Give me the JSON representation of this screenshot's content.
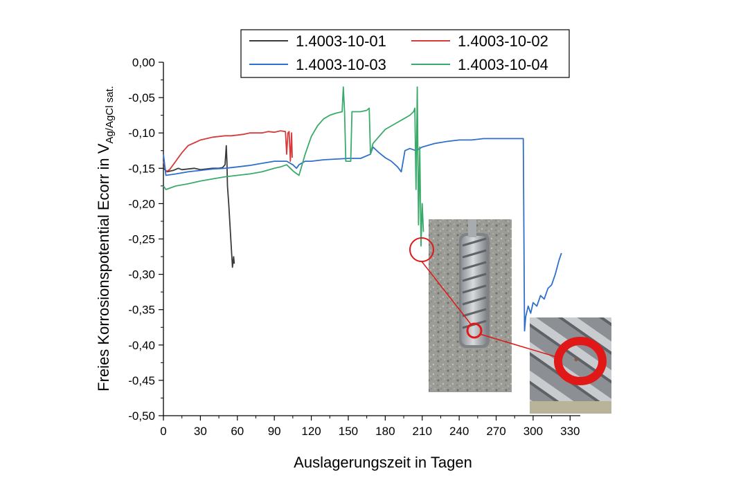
{
  "chart_data": {
    "type": "line",
    "xlabel": "Auslagerungszeit in Tagen",
    "ylabel": {
      "main": "Freies Korrosionspotential Ecorr in V",
      "subscript": "Ag/AgCl sat."
    },
    "xlim": [
      0,
      345
    ],
    "ylim": [
      -0.5,
      0.0
    ],
    "xticks": [
      0,
      30,
      60,
      90,
      120,
      150,
      180,
      210,
      240,
      270,
      300,
      330
    ],
    "xtick_labels": [
      "0",
      "30",
      "60",
      "90",
      "120",
      "150",
      "180",
      "210",
      "240",
      "270",
      "300",
      "330"
    ],
    "yticks": [
      0.0,
      -0.05,
      -0.1,
      -0.15,
      -0.2,
      -0.25,
      -0.3,
      -0.35,
      -0.4,
      -0.45,
      -0.5
    ],
    "ytick_labels": [
      "0,00",
      "-0,05",
      "-0,10",
      "-0,15",
      "-0,20",
      "-0,25",
      "-0,30",
      "-0,35",
      "-0,40",
      "-0,45",
      "-0,50"
    ],
    "grid": false,
    "legend_position": "top",
    "series": [
      {
        "name": "1.4003-10-01",
        "color": "#3a3a3a",
        "points": [
          [
            0,
            -0.15
          ],
          [
            3,
            -0.155
          ],
          [
            8,
            -0.153
          ],
          [
            12,
            -0.15
          ],
          [
            15,
            -0.152
          ],
          [
            20,
            -0.151
          ],
          [
            25,
            -0.15
          ],
          [
            30,
            -0.152
          ],
          [
            35,
            -0.151
          ],
          [
            40,
            -0.15
          ],
          [
            45,
            -0.15
          ],
          [
            48,
            -0.149
          ],
          [
            50,
            -0.145
          ],
          [
            51,
            -0.118
          ],
          [
            51.5,
            -0.14
          ],
          [
            52,
            -0.175
          ],
          [
            53,
            -0.2
          ],
          [
            54,
            -0.23
          ],
          [
            55,
            -0.26
          ],
          [
            56,
            -0.29
          ],
          [
            57,
            -0.275
          ],
          [
            57.5,
            -0.285
          ]
        ]
      },
      {
        "name": "1.4003-10-02",
        "color": "#d63a3a",
        "points": [
          [
            0,
            -0.14
          ],
          [
            2,
            -0.155
          ],
          [
            5,
            -0.152
          ],
          [
            10,
            -0.14
          ],
          [
            15,
            -0.128
          ],
          [
            20,
            -0.118
          ],
          [
            25,
            -0.114
          ],
          [
            30,
            -0.11
          ],
          [
            35,
            -0.108
          ],
          [
            40,
            -0.106
          ],
          [
            45,
            -0.105
          ],
          [
            50,
            -0.104
          ],
          [
            55,
            -0.104
          ],
          [
            60,
            -0.103
          ],
          [
            65,
            -0.102
          ],
          [
            70,
            -0.1
          ],
          [
            75,
            -0.1
          ],
          [
            80,
            -0.1
          ],
          [
            85,
            -0.098
          ],
          [
            90,
            -0.099
          ],
          [
            95,
            -0.097
          ],
          [
            99,
            -0.098
          ],
          [
            100,
            -0.13
          ],
          [
            101,
            -0.1
          ],
          [
            102,
            -0.098
          ],
          [
            103,
            -0.14
          ],
          [
            104,
            -0.1
          ],
          [
            104.5,
            -0.135
          ]
        ]
      },
      {
        "name": "1.4003-10-03",
        "color": "#2f6fcc",
        "points": [
          [
            0,
            -0.13
          ],
          [
            2,
            -0.16
          ],
          [
            10,
            -0.158
          ],
          [
            20,
            -0.155
          ],
          [
            30,
            -0.153
          ],
          [
            40,
            -0.151
          ],
          [
            50,
            -0.15
          ],
          [
            60,
            -0.148
          ],
          [
            70,
            -0.146
          ],
          [
            80,
            -0.143
          ],
          [
            90,
            -0.14
          ],
          [
            100,
            -0.14
          ],
          [
            105,
            -0.145
          ],
          [
            108,
            -0.15
          ],
          [
            110,
            -0.145
          ],
          [
            115,
            -0.14
          ],
          [
            120,
            -0.14
          ],
          [
            130,
            -0.138
          ],
          [
            140,
            -0.137
          ],
          [
            150,
            -0.136
          ],
          [
            160,
            -0.136
          ],
          [
            168,
            -0.13
          ],
          [
            170,
            -0.12
          ],
          [
            175,
            -0.128
          ],
          [
            180,
            -0.135
          ],
          [
            185,
            -0.14
          ],
          [
            190,
            -0.148
          ],
          [
            193,
            -0.155
          ],
          [
            196,
            -0.125
          ],
          [
            200,
            -0.122
          ],
          [
            205,
            -0.125
          ],
          [
            210,
            -0.12
          ],
          [
            220,
            -0.115
          ],
          [
            230,
            -0.112
          ],
          [
            240,
            -0.11
          ],
          [
            250,
            -0.11
          ],
          [
            260,
            -0.108
          ],
          [
            270,
            -0.108
          ],
          [
            280,
            -0.108
          ],
          [
            290,
            -0.108
          ],
          [
            292,
            -0.108
          ],
          [
            293,
            -0.38
          ],
          [
            294,
            -0.36
          ],
          [
            296,
            -0.345
          ],
          [
            298,
            -0.355
          ],
          [
            300,
            -0.34
          ],
          [
            303,
            -0.345
          ],
          [
            306,
            -0.33
          ],
          [
            309,
            -0.335
          ],
          [
            312,
            -0.32
          ],
          [
            315,
            -0.315
          ],
          [
            318,
            -0.3
          ],
          [
            321,
            -0.28
          ],
          [
            323,
            -0.27
          ]
        ]
      },
      {
        "name": "1.4003-10-04",
        "color": "#3aaa6a",
        "points": [
          [
            0,
            -0.175
          ],
          [
            2,
            -0.18
          ],
          [
            10,
            -0.175
          ],
          [
            20,
            -0.172
          ],
          [
            30,
            -0.168
          ],
          [
            40,
            -0.165
          ],
          [
            50,
            -0.162
          ],
          [
            60,
            -0.16
          ],
          [
            70,
            -0.158
          ],
          [
            80,
            -0.155
          ],
          [
            90,
            -0.15
          ],
          [
            95,
            -0.148
          ],
          [
            100,
            -0.145
          ],
          [
            103,
            -0.15
          ],
          [
            106,
            -0.155
          ],
          [
            110,
            -0.16
          ],
          [
            115,
            -0.13
          ],
          [
            120,
            -0.105
          ],
          [
            125,
            -0.09
          ],
          [
            130,
            -0.08
          ],
          [
            135,
            -0.075
          ],
          [
            140,
            -0.072
          ],
          [
            145,
            -0.07
          ],
          [
            146,
            -0.035
          ],
          [
            147,
            -0.07
          ],
          [
            148,
            -0.14
          ],
          [
            152,
            -0.14
          ],
          [
            153,
            -0.07
          ],
          [
            160,
            -0.07
          ],
          [
            165,
            -0.068
          ],
          [
            167,
            -0.065
          ],
          [
            168,
            -0.13
          ],
          [
            170,
            -0.115
          ],
          [
            175,
            -0.105
          ],
          [
            180,
            -0.095
          ],
          [
            185,
            -0.09
          ],
          [
            190,
            -0.085
          ],
          [
            195,
            -0.08
          ],
          [
            200,
            -0.075
          ],
          [
            203,
            -0.07
          ],
          [
            204,
            -0.065
          ],
          [
            205,
            -0.18
          ],
          [
            206,
            -0.035
          ],
          [
            207,
            -0.23
          ],
          [
            208,
            -0.12
          ],
          [
            209,
            -0.26
          ],
          [
            210,
            -0.2
          ],
          [
            211,
            -0.24
          ]
        ]
      }
    ]
  },
  "inset_photos": {
    "main": "concrete-specimen-with-steel-anchor-photo",
    "zoom": "corroded-anchor-closeup-photo",
    "highlight_color": "#e01818"
  }
}
